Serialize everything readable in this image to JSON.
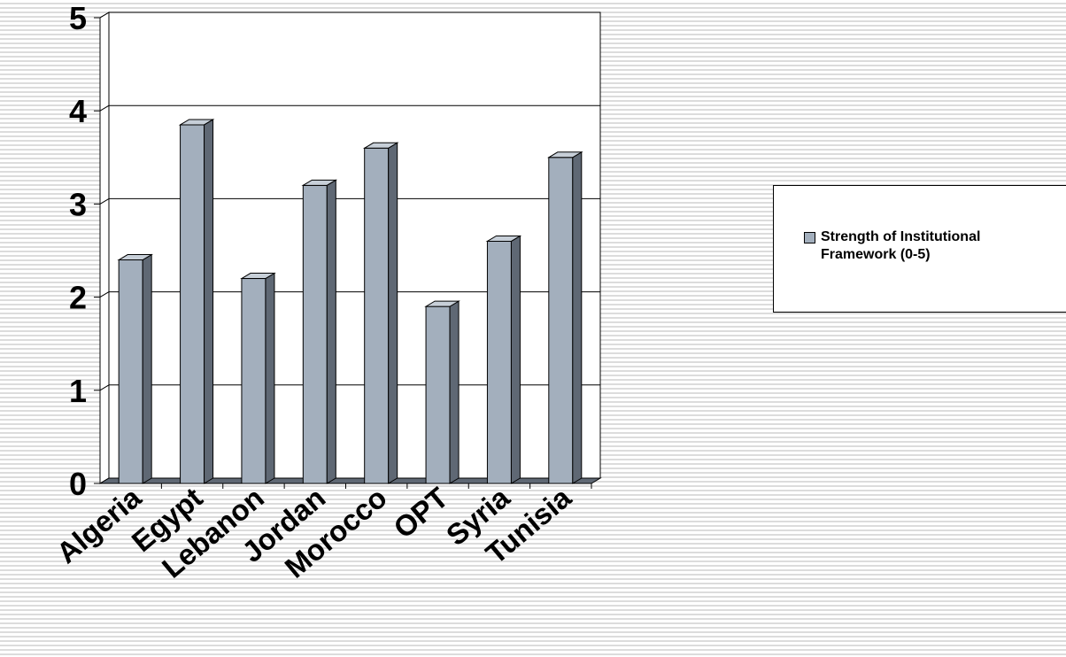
{
  "chart_data": {
    "type": "bar",
    "style": "3d-column",
    "categories": [
      "Algeria",
      "Egypt",
      "Lebanon",
      "Jordan",
      "Morocco",
      "OPT",
      "Syria",
      "Tunisia"
    ],
    "series": [
      {
        "name": "Strength of Institutional Framework (0-5)",
        "values": [
          2.4,
          3.85,
          2.2,
          3.2,
          3.6,
          1.9,
          2.6,
          3.5
        ]
      }
    ],
    "ylim": [
      0,
      5
    ],
    "yticks": [
      "0",
      "1",
      "2",
      "3",
      "4",
      "5"
    ],
    "grid": "horizontal",
    "legend_position": "right",
    "colors": {
      "bar_front": "#a3afbd",
      "bar_side": "#5f6874",
      "bar_top": "#c7cfd8",
      "gridline": "#000000",
      "floor": "#5f6874"
    }
  }
}
